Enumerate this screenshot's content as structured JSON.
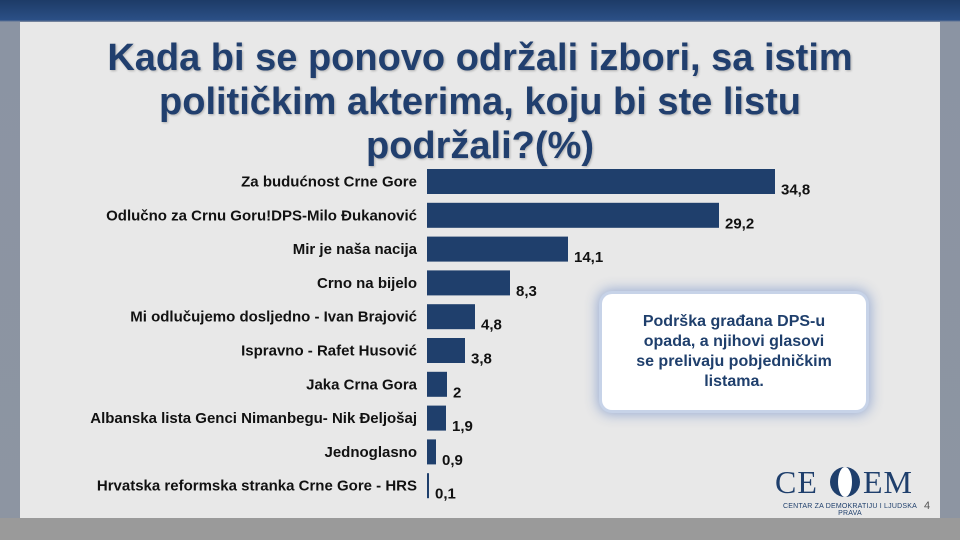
{
  "title_lines": [
    "Kada bi se ponovo održali izbori, sa istim",
    "političkim akterima, koju bi ste listu",
    "podržali?(%)"
  ],
  "callout": {
    "text": "Podrška građana DPS-u opada, a njihovi glasovi se prelivaju pobjedničkim listama."
  },
  "logo": {
    "left": "CE",
    "right": "EM",
    "subtitle": "CENTAR ZA DEMOKRATIJU I LJUDSKA PRAVA"
  },
  "page_number": "4",
  "colors": {
    "bar": "#1f3f6c",
    "title": "#213f6e",
    "background": "#e8e8e8"
  },
  "chart_data": {
    "type": "bar",
    "orientation": "horizontal",
    "title": "Kada bi se ponovo održali izbori, sa istim političkim akterima, koju bi ste listu podržali?(%)",
    "categories": [
      "Za budućnost Crne Gore",
      "Odlučno za Crnu Goru!DPS-Milo Đukanović",
      "Mir je naša nacija",
      "Crno na bijelo",
      "Mi odlučujemo dosljedno - Ivan Brajović",
      "Ispravno - Rafet Husović",
      "Jaka Crna Gora",
      "Albanska lista Genci Nimanbegu- Nik Đeljošaj",
      "Jednoglasno",
      "Hrvatska reformska stranka Crne Gore - HRS"
    ],
    "values": [
      34.8,
      29.2,
      14.1,
      8.3,
      4.8,
      3.8,
      2,
      1.9,
      0.9,
      0.1
    ],
    "value_labels": [
      "34,8",
      "29,2",
      "14,1",
      "8,3",
      "4,8",
      "3,8",
      "2",
      "1,9",
      "0,9",
      "0,1"
    ],
    "xlim": [
      0,
      40
    ],
    "grid": false,
    "legend": "none"
  }
}
